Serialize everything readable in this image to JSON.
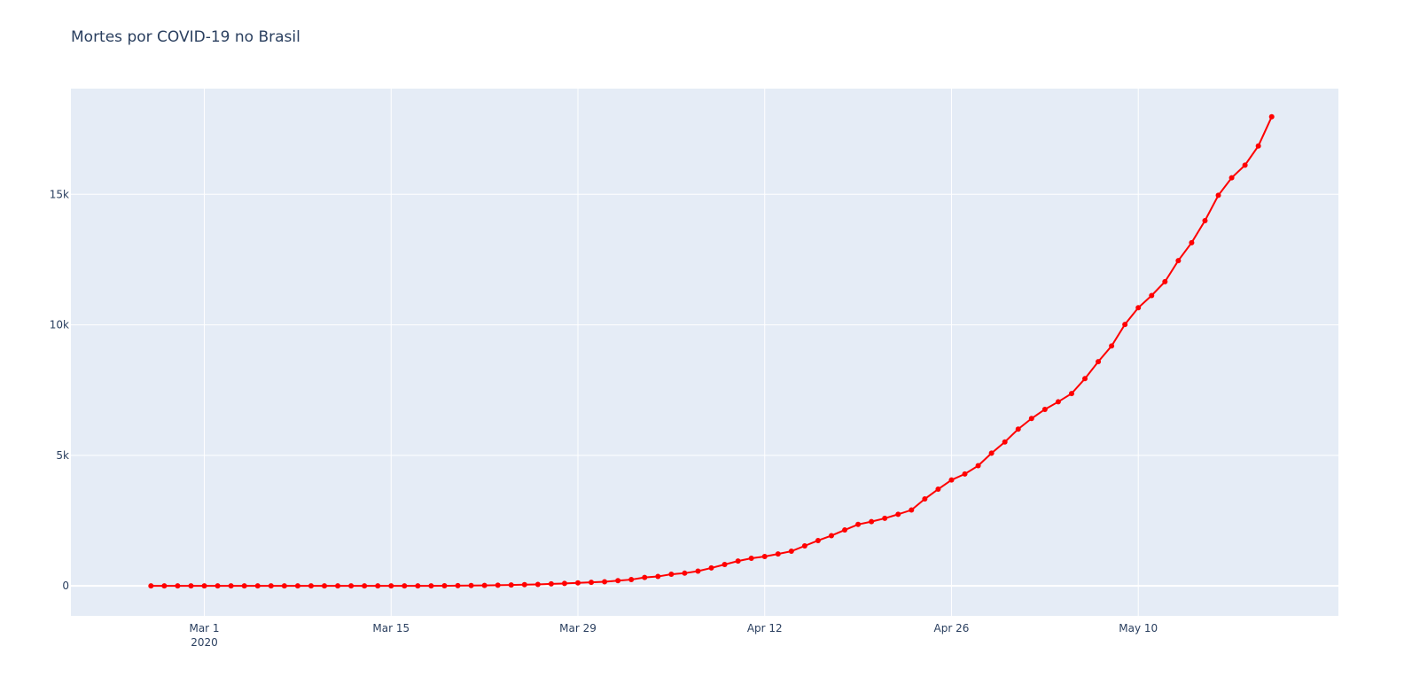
{
  "chart_data": {
    "type": "line",
    "title": "Mortes por COVID-19 no Brasil",
    "xlabel": "",
    "ylabel": "",
    "x_range": [
      "2020-02-20",
      "2020-05-25"
    ],
    "ylim": [
      -1150,
      19050
    ],
    "x_ticks": [
      {
        "date": "2020-03-01",
        "label": "Mar 1",
        "sublabel": "2020"
      },
      {
        "date": "2020-03-15",
        "label": "Mar 15"
      },
      {
        "date": "2020-03-29",
        "label": "Mar 29"
      },
      {
        "date": "2020-04-12",
        "label": "Apr 12"
      },
      {
        "date": "2020-04-26",
        "label": "Apr 26"
      },
      {
        "date": "2020-05-10",
        "label": "May 10"
      }
    ],
    "y_ticks": [
      {
        "value": 0,
        "label": "0"
      },
      {
        "value": 5000,
        "label": "5k"
      },
      {
        "value": 10000,
        "label": "10k"
      },
      {
        "value": 15000,
        "label": "15k"
      }
    ],
    "grid": true,
    "colors": {
      "line": "#ff0000",
      "plot_bg": "#e5ecf6",
      "grid": "#ffffff",
      "text": "#2a3f5f"
    },
    "series": [
      {
        "start_date": "2020-02-26",
        "values": [
          0,
          0,
          0,
          0,
          0,
          0,
          0,
          0,
          0,
          0,
          0,
          0,
          0,
          0,
          0,
          0,
          0,
          0,
          0,
          0,
          0,
          1,
          3,
          7,
          11,
          18,
          25,
          34,
          46,
          57,
          77,
          92,
          114,
          136,
          159,
          201,
          240,
          324,
          359,
          445,
          486,
          564,
          686,
          819,
          950,
          1057,
          1124,
          1223,
          1328,
          1532,
          1736,
          1924,
          2141,
          2354,
          2462,
          2587,
          2741,
          2906,
          3331,
          3704,
          4057,
          4286,
          4603,
          5083,
          5513,
          6006,
          6412,
          6761,
          7051,
          7367,
          7938,
          8588,
          9190,
          10017,
          10656,
          11123,
          11653,
          12461,
          13149,
          13993,
          14962,
          15633,
          16118,
          16853,
          17971
        ]
      }
    ]
  }
}
